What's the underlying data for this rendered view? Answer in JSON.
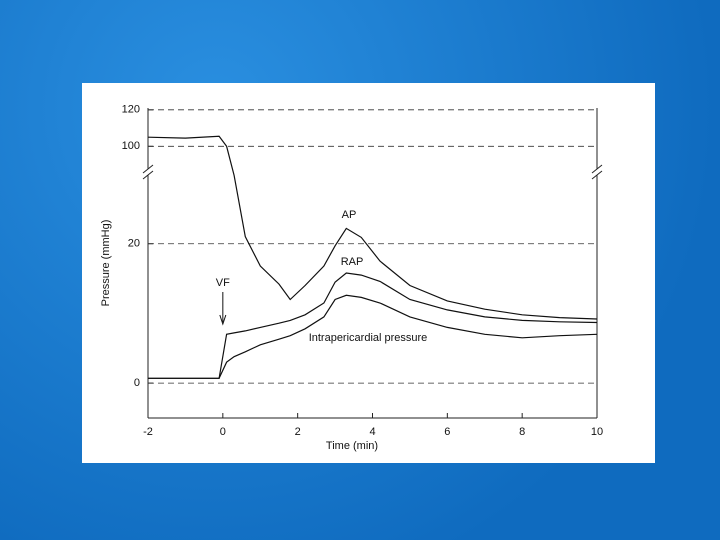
{
  "chart_data": {
    "type": "line",
    "x_label": "Time (min)",
    "y_label": "Pressure (mmHg)",
    "annotation": "VF",
    "xlim": [
      -2,
      10
    ],
    "xticks": [
      -2,
      0,
      2,
      4,
      6,
      8,
      10
    ],
    "ylim": [
      -5,
      121
    ],
    "axis_break": [
      30,
      87
    ],
    "yticks": [
      0,
      20,
      100,
      120
    ],
    "grid": true,
    "x": [
      -2,
      -1,
      -0.1,
      0.1,
      0.3,
      0.6,
      1,
      1.5,
      1.8,
      2.2,
      2.7,
      3,
      3.3,
      3.7,
      4.2,
      5,
      6,
      7,
      8,
      9,
      10
    ],
    "series": [
      {
        "name": "AP",
        "color": "#111111",
        "values": [
          105,
          104.5,
          105.5,
          100,
          29.8,
          21,
          16.8,
          14.2,
          12,
          14,
          16.8,
          19.7,
          22.2,
          20.9,
          17.5,
          14,
          11.8,
          10.6,
          9.8,
          9.4,
          9.2
        ]
      },
      {
        "name": "RAP",
        "color": "#111111",
        "values": [
          0.7,
          0.7,
          0.7,
          7,
          7.2,
          7.5,
          8,
          8.6,
          9,
          9.8,
          11.5,
          14.5,
          15.8,
          15.5,
          14.6,
          12,
          10.5,
          9.5,
          9,
          8.8,
          8.7
        ]
      },
      {
        "name": "Intrapericardial pressure",
        "color": "#111111",
        "values": [
          0.7,
          0.7,
          0.7,
          3,
          3.8,
          4.5,
          5.5,
          6.3,
          6.8,
          7.8,
          9.5,
          12,
          12.6,
          12.3,
          11.5,
          9.5,
          8,
          7,
          6.5,
          6.8,
          7
        ]
      }
    ]
  }
}
